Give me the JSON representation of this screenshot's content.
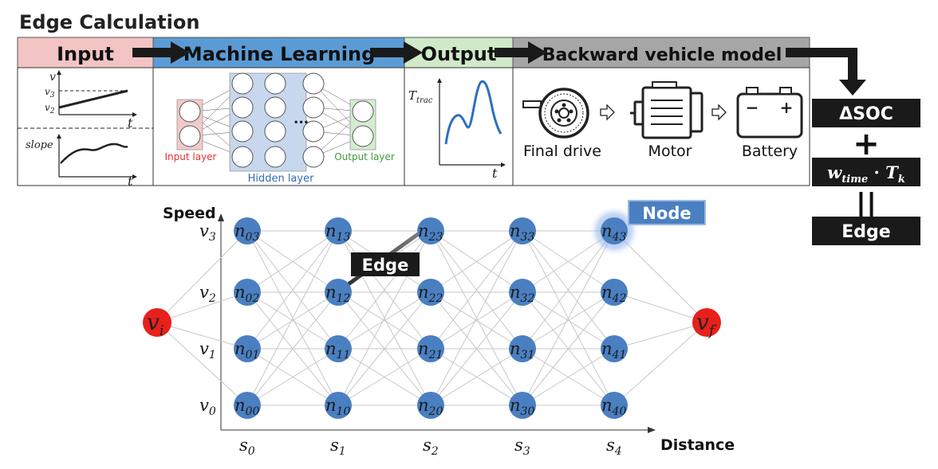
{
  "title": "Edge Calculation",
  "stages": {
    "input": "Input",
    "ml": "Machine Learning",
    "output": "Output",
    "backward": "Backward vehicle model"
  },
  "input_panel": {
    "v_axis": "v",
    "v3": "v",
    "v3_sub": "3",
    "v2": "v",
    "v2_sub": "2",
    "t_top": "t",
    "slope": "slope",
    "t_bottom": "t"
  },
  "ml_panel": {
    "input_layer": "Input layer",
    "hidden_layer": "Hidden layer",
    "output_layer": "Output layer",
    "ellipsis": "•••"
  },
  "output_panel": {
    "ttrac": "T",
    "ttrac_sub": "trac",
    "t": "t"
  },
  "vehicle_panel": {
    "final_drive": "Final drive",
    "motor": "Motor",
    "battery": "Battery",
    "minus": "−",
    "plus": "+"
  },
  "formula": {
    "dsoc": "ΔSOC",
    "plus": "+",
    "w": "w",
    "w_sub": "time",
    "dot": " · ",
    "T": "T",
    "T_sub": "k",
    "equals": "||",
    "edge": "Edge"
  },
  "graph": {
    "y_axis_label": "Speed",
    "x_axis_label": "Distance",
    "speed_levels": [
      {
        "base": "v",
        "sub": "0"
      },
      {
        "base": "v",
        "sub": "1"
      },
      {
        "base": "v",
        "sub": "2"
      },
      {
        "base": "v",
        "sub": "3"
      }
    ],
    "stages": [
      {
        "base": "s",
        "sub": "0"
      },
      {
        "base": "s",
        "sub": "1"
      },
      {
        "base": "s",
        "sub": "2"
      },
      {
        "base": "s",
        "sub": "3"
      },
      {
        "base": "s",
        "sub": "4"
      }
    ],
    "node_prefix": "n",
    "start": {
      "base": "v",
      "sub": "i"
    },
    "end": {
      "base": "v",
      "sub": "f"
    },
    "node_callout": "Node",
    "edge_callout": "Edge"
  },
  "colors": {
    "input": "#f2c4c4",
    "ml": "#5b9bd5",
    "output": "#cfe9c9",
    "backward": "#a6a6a6",
    "node": "#4a7fc1",
    "endpoint": "#e8201c",
    "formula_box": "#1a1a1a"
  }
}
